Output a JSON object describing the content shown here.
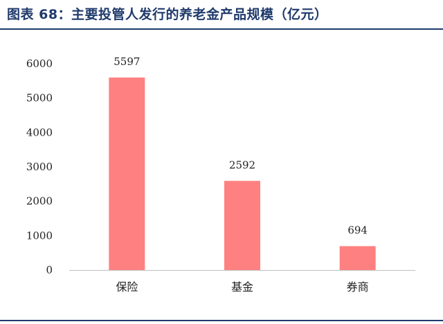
{
  "header": {
    "title": "图表 68：主要投管人发行的养老金产品规模（亿元）"
  },
  "chart_data": {
    "type": "bar",
    "categories": [
      "保险",
      "基金",
      "券商"
    ],
    "values": [
      5597,
      2592,
      694
    ],
    "ylim": [
      0,
      6000
    ],
    "yticks": [
      0,
      1000,
      2000,
      3000,
      4000,
      5000,
      6000
    ],
    "grid": false,
    "bar_color": "#ff8080",
    "axis_color": "#bfbfbf"
  }
}
